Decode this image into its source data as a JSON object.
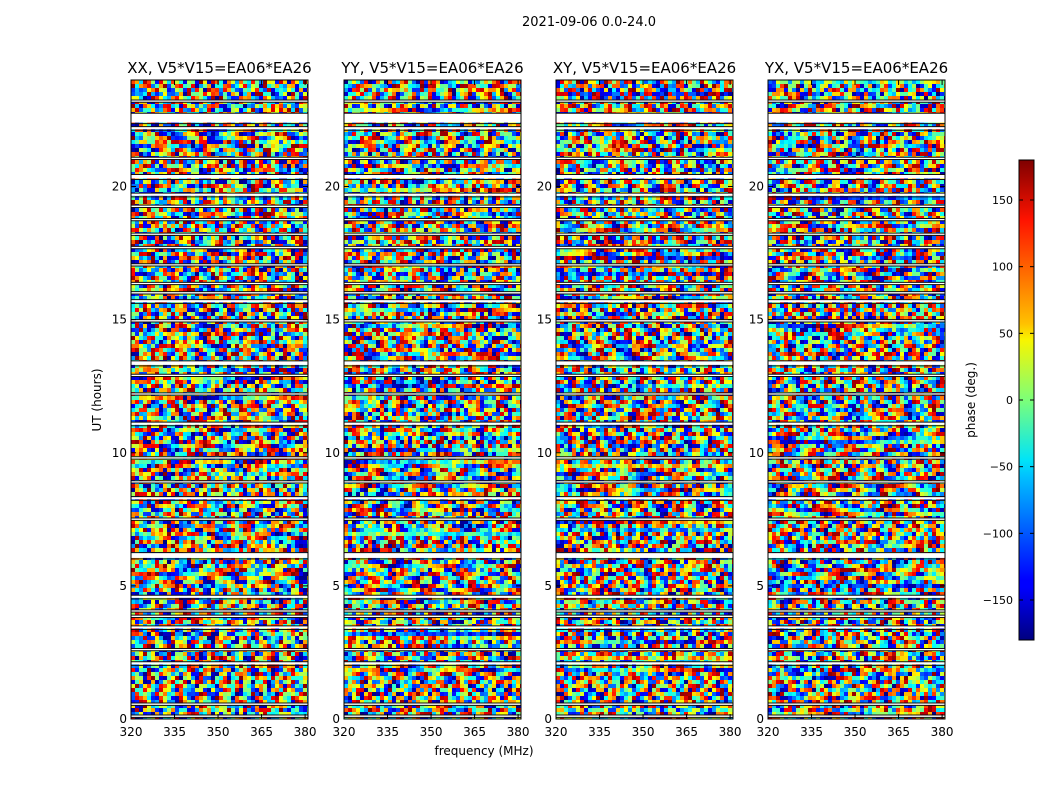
{
  "figure": {
    "suptitle": "2021-09-06 0.0-24.0"
  },
  "chart_data": {
    "type": "heatmap",
    "title": "2021-09-06 0.0-24.0",
    "xlabel": "frequency (MHz)",
    "ylabel": "UT (hours)",
    "xlim": [
      320,
      381
    ],
    "ylim": [
      0,
      24
    ],
    "xticks": [
      320,
      335,
      350,
      365,
      380
    ],
    "yticks": [
      0,
      5,
      10,
      15,
      20
    ],
    "panels": [
      {
        "title": "XX, V5*V15=EA06*EA26",
        "pol": "XX"
      },
      {
        "title": "YY, V5*V15=EA06*EA26",
        "pol": "YY"
      },
      {
        "title": "XY, V5*V15=EA06*EA26",
        "pol": "XY"
      },
      {
        "title": "YX, V5*V15=EA06*EA26",
        "pol": "YX"
      }
    ],
    "colorbar": {
      "label": "phase (deg.)",
      "range": [
        -180,
        180
      ],
      "ticks": [
        -150,
        -100,
        -50,
        0,
        50,
        100,
        150
      ],
      "colormap": "jet"
    },
    "gaps_hours": [
      [
        0.1,
        0.15
      ],
      [
        0.55,
        0.6
      ],
      [
        2.05,
        2.15
      ],
      [
        2.6,
        2.65
      ],
      [
        3.4,
        3.5
      ],
      [
        3.85,
        3.9
      ],
      [
        4.05,
        4.1
      ],
      [
        4.55,
        4.65
      ],
      [
        6.05,
        6.25
      ],
      [
        7.5,
        7.55
      ],
      [
        8.25,
        8.35
      ],
      [
        8.9,
        8.95
      ],
      [
        9.8,
        9.85
      ],
      [
        11.05,
        11.15
      ],
      [
        12.2,
        12.25
      ],
      [
        12.9,
        12.95
      ],
      [
        13.3,
        13.45
      ],
      [
        14.95,
        15.0
      ],
      [
        15.65,
        15.75
      ],
      [
        16.0,
        16.05
      ],
      [
        16.35,
        16.4
      ],
      [
        17.05,
        17.1
      ],
      [
        17.7,
        17.75
      ],
      [
        18.2,
        18.25
      ],
      [
        18.75,
        18.8
      ],
      [
        19.25,
        19.3
      ],
      [
        19.65,
        19.75
      ],
      [
        20.3,
        20.45
      ],
      [
        21.05,
        21.1
      ],
      [
        22.15,
        22.25
      ],
      [
        22.4,
        22.75
      ],
      [
        23.2,
        23.25
      ]
    ]
  }
}
